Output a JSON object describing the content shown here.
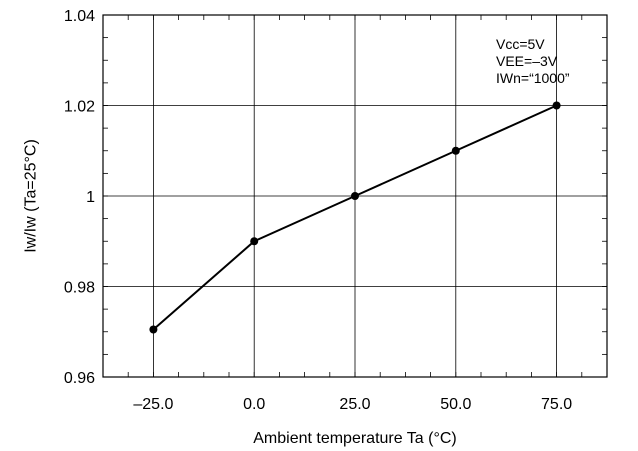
{
  "chart_data": {
    "type": "line",
    "xlabel": "Ambient temperature Ta (°C)",
    "ylabel": "Iw/Iw (Ta=25°C)",
    "x_tick_labels": [
      "–25.0",
      "0.0",
      "25.0",
      "50.0",
      "75.0"
    ],
    "y_tick_labels": [
      "0.96",
      "0.98",
      "1",
      "1.02",
      "1.04"
    ],
    "x_ticks": [
      -25,
      0,
      25,
      50,
      75
    ],
    "y_ticks": [
      0.96,
      0.98,
      1.0,
      1.02,
      1.04
    ],
    "xlim": [
      -37.5,
      87.5
    ],
    "ylim": [
      0.96,
      1.04
    ],
    "grid": true,
    "annotations": [
      "Vcc=5V",
      "VEE=–3V",
      "IWn=“1000”"
    ],
    "series": [
      {
        "x": [
          -25,
          0,
          25,
          50,
          75
        ],
        "y": [
          0.9705,
          0.99,
          1.0,
          1.01,
          1.02
        ]
      }
    ]
  }
}
